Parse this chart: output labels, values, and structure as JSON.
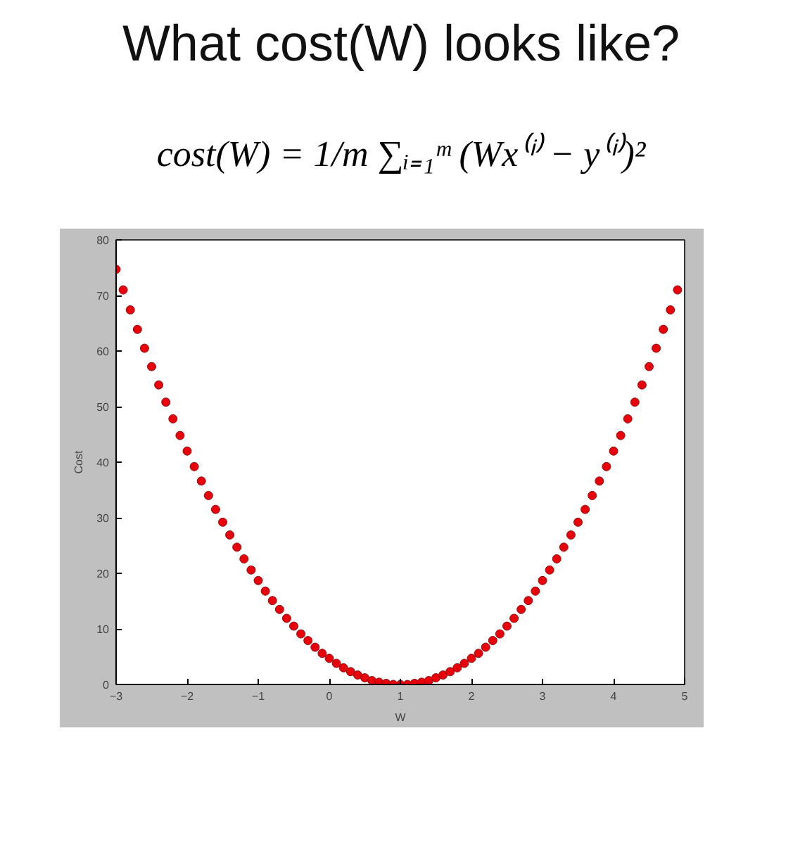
{
  "chart_data": {
    "type": "scatter",
    "title": "What cost(W) looks like?",
    "subtitle": "cost(W) = 1/m ∑ᵢ₌₁ᵐ (Wx⁽ⁱ⁾ − y⁽ⁱ⁾)²",
    "xlabel": "W",
    "ylabel": "Cost",
    "x": [
      -3.0,
      -2.9,
      -2.8,
      -2.7,
      -2.6,
      -2.5,
      -2.4,
      -2.3,
      -2.2,
      -2.1,
      -2.0,
      -1.9,
      -1.8,
      -1.7,
      -1.6,
      -1.5,
      -1.4,
      -1.3,
      -1.2,
      -1.1,
      -1.0,
      -0.9,
      -0.8,
      -0.7,
      -0.6,
      -0.5,
      -0.4,
      -0.3,
      -0.2,
      -0.1,
      0.0,
      0.1,
      0.2,
      0.3,
      0.4,
      0.5,
      0.6,
      0.7,
      0.8,
      0.9,
      1.0,
      1.1,
      1.2,
      1.3,
      1.4,
      1.5,
      1.6,
      1.7,
      1.8,
      1.9,
      2.0,
      2.1,
      2.2,
      2.3,
      2.4,
      2.5,
      2.6,
      2.7,
      2.8,
      2.9,
      3.0,
      3.1,
      3.2,
      3.3,
      3.4,
      3.5,
      3.6,
      3.7,
      3.8,
      3.9,
      4.0,
      4.1,
      4.2,
      4.3,
      4.4,
      4.5,
      4.6,
      4.7,
      4.8,
      4.9
    ],
    "series": [
      {
        "color": "#e8000b",
        "values": [
          74.7,
          71.0,
          67.4,
          63.9,
          60.5,
          57.2,
          53.9,
          50.8,
          47.8,
          44.8,
          42.0,
          39.2,
          36.6,
          34.0,
          31.5,
          29.2,
          26.9,
          24.7,
          22.6,
          20.6,
          18.7,
          16.8,
          15.1,
          13.5,
          11.9,
          10.5,
          9.1,
          7.9,
          6.7,
          5.6,
          4.7,
          3.8,
          3.0,
          2.3,
          1.7,
          1.2,
          0.7,
          0.4,
          0.2,
          0.0,
          0.0,
          0.0,
          0.2,
          0.4,
          0.7,
          1.2,
          1.7,
          2.3,
          3.0,
          3.8,
          4.7,
          5.6,
          6.7,
          7.9,
          9.1,
          10.5,
          11.9,
          13.5,
          15.1,
          16.8,
          18.7,
          20.6,
          22.6,
          24.7,
          26.9,
          29.2,
          31.5,
          34.0,
          36.6,
          39.2,
          42.0,
          44.8,
          47.8,
          50.8,
          53.9,
          57.2,
          60.5,
          63.9,
          67.4,
          71.0
        ]
      }
    ],
    "xlim": [
      -3,
      5
    ],
    "ylim": [
      0,
      80
    ],
    "xticks": [
      -3,
      -2,
      -1,
      0,
      1,
      2,
      3,
      4,
      5
    ],
    "yticks": [
      0,
      10,
      20,
      30,
      40,
      50,
      60,
      70,
      80
    ],
    "grid": false,
    "marker": "circle"
  }
}
